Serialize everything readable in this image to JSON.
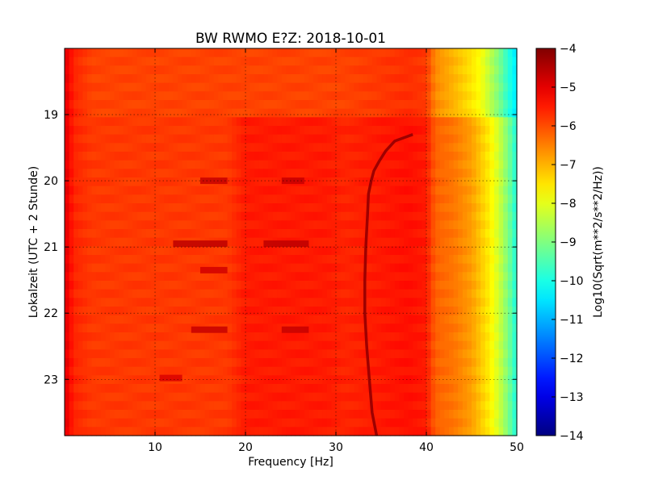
{
  "chart_data": {
    "type": "heatmap",
    "title": "BW RWMO E?Z: 2018-10-01",
    "xlabel": "Frequency [Hz]",
    "ylabel": "Lokalzeit (UTC + 2 Stunde)",
    "xlim": [
      0,
      50
    ],
    "ylim": [
      18.0,
      23.85
    ],
    "y_inverted": true,
    "x_ticks": [
      10,
      20,
      30,
      40,
      50
    ],
    "x_tick_labels": [
      "10",
      "20",
      "30",
      "40",
      "50"
    ],
    "y_ticks": [
      19,
      20,
      21,
      22,
      23
    ],
    "y_tick_labels": [
      "19",
      "20",
      "21",
      "22",
      "23"
    ],
    "grid": true,
    "colormap": "jet",
    "colorbar": {
      "label": "Log10(Sqrt(m**2/s**2/Hz))",
      "range": [
        -14,
        -4
      ],
      "ticks": [
        -4,
        -5,
        -6,
        -7,
        -8,
        -9,
        -10,
        -11,
        -12,
        -13,
        -14
      ],
      "tick_labels": [
        "−4",
        "−5",
        "−6",
        "−7",
        "−8",
        "−9",
        "−10",
        "−11",
        "−12",
        "−13",
        "−14"
      ]
    },
    "spectral_profile": {
      "frequency": [
        0,
        1,
        3,
        10,
        18,
        20,
        29,
        31,
        38,
        40,
        41,
        43,
        45,
        46,
        47,
        48,
        49,
        50
      ],
      "level_before_19": [
        -4.9,
        -5.6,
        -5.9,
        -5.9,
        -5.9,
        -5.9,
        -5.9,
        -5.9,
        -5.7,
        -5.8,
        -6.6,
        -7.0,
        -7.5,
        -7.8,
        -8.4,
        -9.0,
        -9.8,
        -10.5
      ],
      "level_after_19": [
        -4.9,
        -5.6,
        -5.8,
        -5.8,
        -5.8,
        -5.5,
        -5.5,
        -5.6,
        -5.4,
        -5.5,
        -6.2,
        -6.4,
        -6.8,
        -7.2,
        -7.6,
        -8.2,
        -9.0,
        -10.0
      ]
    },
    "tonal_line": {
      "time": [
        19.3,
        19.4,
        19.55,
        19.7,
        19.85,
        20.0,
        20.2,
        20.5,
        21.0,
        21.5,
        22.0,
        22.5,
        23.0,
        23.5,
        23.85
      ],
      "frequency": [
        38.5,
        36.5,
        35.5,
        34.8,
        34.2,
        33.9,
        33.6,
        33.5,
        33.3,
        33.2,
        33.2,
        33.4,
        33.7,
        34.0,
        34.5
      ],
      "level": -4.3
    },
    "events": [
      {
        "time": 20.0,
        "frequency_ranges": [
          [
            15,
            18
          ],
          [
            24,
            26.5
          ]
        ],
        "level": -4.7
      },
      {
        "time": 20.95,
        "frequency_ranges": [
          [
            12,
            18
          ],
          [
            22,
            27
          ]
        ],
        "level": -4.6
      },
      {
        "time": 21.35,
        "frequency_ranges": [
          [
            15,
            18
          ]
        ],
        "level": -4.8
      },
      {
        "time": 22.25,
        "frequency_ranges": [
          [
            14,
            18
          ],
          [
            24,
            27
          ]
        ],
        "level": -4.7
      },
      {
        "time": 22.98,
        "frequency_ranges": [
          [
            10.5,
            13
          ]
        ],
        "level": -4.9
      }
    ]
  }
}
